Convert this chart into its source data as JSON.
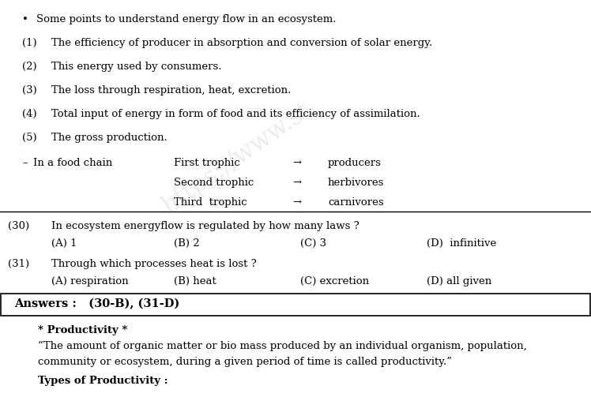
{
  "background_color": "#ffffff",
  "text_color": "#000000",
  "bullet_line": "Some points to understand energy flow in an ecosystem.",
  "numbered_lines": [
    [
      "(1)",
      "The efficiency of producer in absorption and conversion of solar energy."
    ],
    [
      "(2)",
      "This energy used by consumers."
    ],
    [
      "(3)",
      "The loss through respiration, heat, excretion."
    ],
    [
      "(4)",
      "Total input of energy in form of food and its efficiency of assimilation."
    ],
    [
      "(5)",
      "The gross production."
    ]
  ],
  "foodchain": [
    [
      "First trophic",
      "→",
      "producers"
    ],
    [
      "Second trophic",
      "→",
      "herbivores"
    ],
    [
      "Third  trophic",
      "→",
      "carnivores"
    ]
  ],
  "q30_text": "In ecosystem energyflow is regulated by how many laws ?",
  "q30_opts": [
    "(A) 1",
    "(B) 2",
    "(C) 3",
    "(D)  infinitive"
  ],
  "q31_text": "Through which processes heat is lost ?",
  "q31_opts": [
    "(A) respiration",
    "(B) heat",
    "(C) excretion",
    "(D) all given"
  ],
  "answer_text": "Answers :   (30-B), (31-D)",
  "prod_heading": "* Productivity *",
  "prod_line1": "“The amount of organic matter or bio mass produced by an individual organism, population,",
  "prod_line2": "community or ecosystem, during a given period of time is called productivity.”",
  "prod_types": "Types of Productivity :",
  "watermark": "https://www.st"
}
